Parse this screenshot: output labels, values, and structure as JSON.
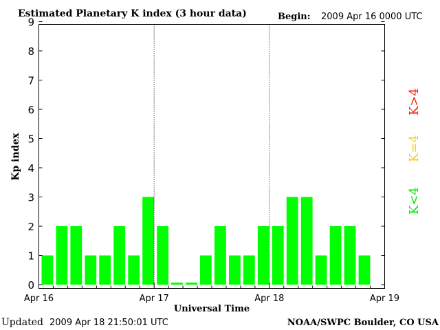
{
  "header": {
    "title": "Estimated Planetary K index (3 hour data)",
    "begin_label": "Begin:",
    "begin_value": "2009 Apr 16 0000 UTC"
  },
  "footer": {
    "updated_label": "Updated",
    "updated_value": "2009 Apr 18 21:50:01 UTC",
    "source": "NOAA/SWPC Boulder, CO USA"
  },
  "legend": {
    "low": {
      "label": "K<4",
      "color": "#00ee00"
    },
    "mid": {
      "label": "K=4",
      "color": "#ffd000"
    },
    "high": {
      "label": "K>4",
      "color": "#ff2000"
    }
  },
  "chart_data": {
    "type": "bar",
    "title": "Estimated Planetary K index (3 hour data)",
    "xlabel": "Universal Time",
    "ylabel": "Kp index",
    "ylim": [
      0,
      9
    ],
    "yticks": [
      0,
      1,
      2,
      3,
      4,
      5,
      6,
      7,
      8,
      9
    ],
    "x_tick_labels": [
      "Apr 16",
      "Apr 17",
      "Apr 18",
      "Apr 19"
    ],
    "day_separators": [
      "Apr 17",
      "Apr 18"
    ],
    "bar_color": "#00ff00",
    "grid": false,
    "series": [
      {
        "values": [
          1,
          2,
          2,
          1,
          1,
          2,
          1,
          3,
          2,
          0,
          0,
          1,
          2,
          1,
          1,
          2,
          2,
          3,
          3,
          1,
          2,
          2,
          1
        ]
      }
    ]
  }
}
